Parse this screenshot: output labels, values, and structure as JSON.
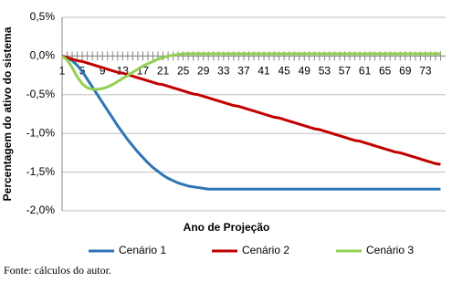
{
  "chart_data": {
    "type": "line",
    "x_label": "Ano de Projeção",
    "y_label": "Percentagem do ativo do sistema",
    "categories": [
      "1",
      null,
      null,
      null,
      "5",
      null,
      null,
      null,
      "9",
      null,
      null,
      null,
      "13",
      null,
      null,
      null,
      "17",
      null,
      null,
      null,
      "21",
      null,
      null,
      null,
      "25",
      null,
      null,
      null,
      "29",
      null,
      null,
      null,
      "33",
      null,
      null,
      null,
      "37",
      null,
      null,
      null,
      "41",
      null,
      null,
      null,
      "45",
      null,
      null,
      null,
      "49",
      null,
      null,
      null,
      "53",
      null,
      null,
      null,
      "57",
      null,
      null,
      null,
      "61",
      null,
      null,
      null,
      "65",
      null,
      null,
      null,
      "69",
      null,
      null,
      null,
      "73",
      null,
      null,
      null
    ],
    "ylim": [
      -2.0,
      0.5
    ],
    "yticks": [
      {
        "value": 0.5,
        "label": "0,5%"
      },
      {
        "value": 0,
        "label": "0,0%"
      },
      {
        "value": -0.5,
        "label": "-0,5%"
      },
      {
        "value": -1.0,
        "label": "-1,0%"
      },
      {
        "value": -1.5,
        "label": "-1,5%"
      },
      {
        "value": -2.0,
        "label": "-2,0%"
      }
    ],
    "grid": true,
    "legend": "bottom",
    "series": [
      {
        "name": "Cenário 1",
        "color": "#2e75b6",
        "values": [
          0,
          -0.02,
          -0.06,
          -0.12,
          -0.2,
          -0.3,
          -0.4,
          -0.5,
          -0.6,
          -0.7,
          -0.8,
          -0.9,
          -0.99,
          -1.08,
          -1.16,
          -1.24,
          -1.31,
          -1.38,
          -1.44,
          -1.49,
          -1.54,
          -1.58,
          -1.61,
          -1.64,
          -1.66,
          -1.68,
          -1.69,
          -1.7,
          -1.71,
          -1.72,
          -1.72,
          -1.72,
          -1.72,
          -1.72,
          -1.72,
          -1.72,
          -1.72,
          -1.72,
          -1.72,
          -1.72,
          -1.72,
          -1.72,
          -1.72,
          -1.72,
          -1.72,
          -1.72,
          -1.72,
          -1.72,
          -1.72,
          -1.72,
          -1.72,
          -1.72,
          -1.72,
          -1.72,
          -1.72,
          -1.72,
          -1.72,
          -1.72,
          -1.72,
          -1.72,
          -1.72,
          -1.72,
          -1.72,
          -1.72,
          -1.72,
          -1.72,
          -1.72,
          -1.72,
          -1.72,
          -1.72,
          -1.72,
          -1.72,
          -1.72,
          -1.72,
          -1.72,
          -1.72
        ]
      },
      {
        "name": "Cenário 2",
        "color": "#c00000",
        "values": [
          0,
          -0.02,
          -0.04,
          -0.06,
          -0.07,
          -0.09,
          -0.11,
          -0.13,
          -0.15,
          -0.17,
          -0.19,
          -0.21,
          -0.22,
          -0.24,
          -0.26,
          -0.28,
          -0.3,
          -0.32,
          -0.34,
          -0.36,
          -0.37,
          -0.39,
          -0.41,
          -0.43,
          -0.45,
          -0.47,
          -0.49,
          -0.5,
          -0.52,
          -0.54,
          -0.56,
          -0.58,
          -0.6,
          -0.62,
          -0.64,
          -0.65,
          -0.67,
          -0.69,
          -0.71,
          -0.73,
          -0.75,
          -0.77,
          -0.79,
          -0.8,
          -0.82,
          -0.84,
          -0.86,
          -0.88,
          -0.9,
          -0.92,
          -0.94,
          -0.95,
          -0.97,
          -0.99,
          -1.01,
          -1.03,
          -1.05,
          -1.07,
          -1.09,
          -1.1,
          -1.12,
          -1.14,
          -1.16,
          -1.18,
          -1.2,
          -1.22,
          -1.24,
          -1.25,
          -1.27,
          -1.29,
          -1.31,
          -1.33,
          -1.35,
          -1.37,
          -1.39,
          -1.4
        ]
      },
      {
        "name": "Cenário 3",
        "color": "#92d050",
        "values": [
          0,
          -0.05,
          -0.15,
          -0.27,
          -0.36,
          -0.41,
          -0.43,
          -0.43,
          -0.42,
          -0.4,
          -0.37,
          -0.33,
          -0.29,
          -0.25,
          -0.21,
          -0.17,
          -0.13,
          -0.1,
          -0.07,
          -0.04,
          -0.02,
          0,
          0.01,
          0.02,
          0.03,
          0.03,
          0.03,
          0.03,
          0.03,
          0.03,
          0.03,
          0.03,
          0.03,
          0.03,
          0.03,
          0.03,
          0.03,
          0.03,
          0.03,
          0.03,
          0.03,
          0.03,
          0.03,
          0.03,
          0.03,
          0.03,
          0.03,
          0.03,
          0.03,
          0.03,
          0.03,
          0.03,
          0.03,
          0.03,
          0.03,
          0.03,
          0.03,
          0.03,
          0.03,
          0.03,
          0.03,
          0.03,
          0.03,
          0.03,
          0.03,
          0.03,
          0.03,
          0.03,
          0.03,
          0.03,
          0.03,
          0.03,
          0.03,
          0.03,
          0.03,
          0.03
        ]
      }
    ]
  },
  "source": "Fonte: cálculos do autor."
}
